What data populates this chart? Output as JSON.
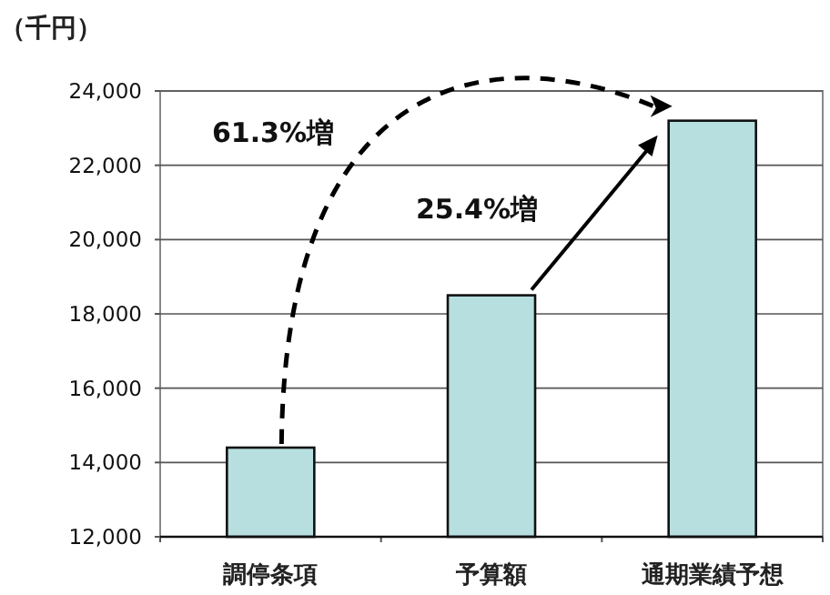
{
  "chart_data": {
    "type": "bar",
    "ylabel": "（千円）",
    "categories": [
      "調停条項",
      "予算額",
      "通期業績予想"
    ],
    "values": [
      14400,
      18500,
      23200
    ],
    "color": "#b7dfe0",
    "ylim": [
      12000,
      24000
    ],
    "yticks": [
      {
        "value": 12000,
        "label": "12,000"
      },
      {
        "value": 14000,
        "label": "14,000"
      },
      {
        "value": 16000,
        "label": "16,000"
      },
      {
        "value": 18000,
        "label": "18,000"
      },
      {
        "value": 20000,
        "label": "20,000"
      },
      {
        "value": 22000,
        "label": "22,000"
      },
      {
        "value": 24000,
        "label": "24,000"
      }
    ],
    "grid": "y",
    "annotations": [
      "61.3%増",
      "25.4%増"
    ]
  }
}
